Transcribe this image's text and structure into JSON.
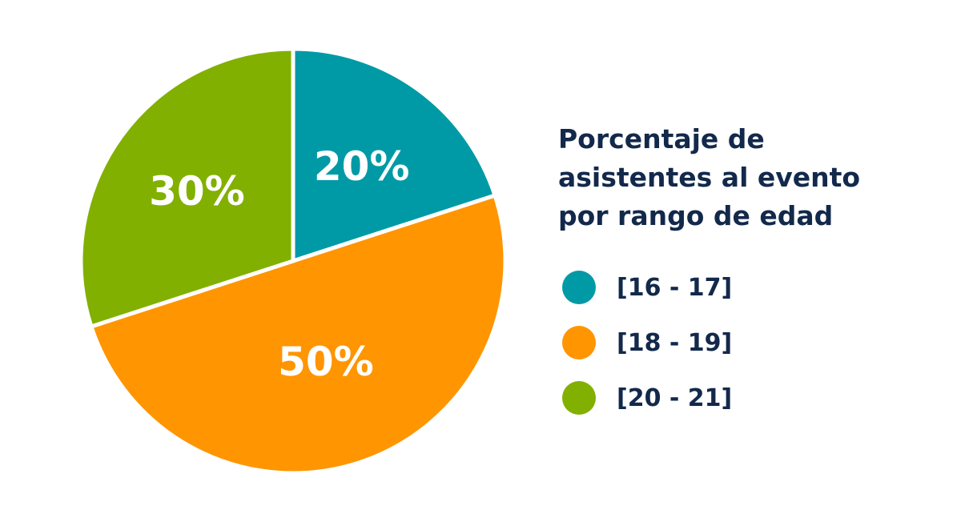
{
  "chart_data": {
    "type": "pie",
    "title_lines": [
      "Porcentaje de",
      "asistentes al evento",
      "por rango de edad"
    ],
    "slices": [
      {
        "name": "[16 - 17]",
        "value": 20,
        "label": "20%",
        "color": "#009aa6"
      },
      {
        "name": "[18 - 19]",
        "value": 50,
        "label": "50%",
        "color": "#ff9500"
      },
      {
        "name": "[20 - 21]",
        "value": 30,
        "label": "30%",
        "color": "#82b000"
      }
    ],
    "legend_placement": "right",
    "start_angle": "top, clockwise"
  }
}
